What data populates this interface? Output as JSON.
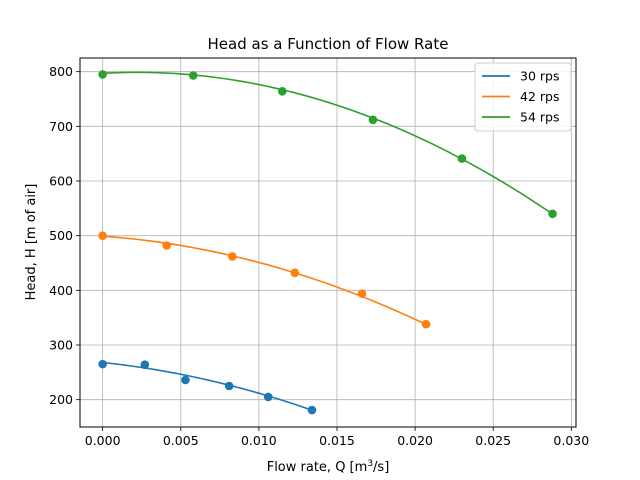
{
  "chart_data": {
    "type": "line",
    "title": "Head as a Function of Flow Rate",
    "xlabel_main": "Flow rate, Q [m",
    "xlabel_sup": "3",
    "xlabel_end": "/s]",
    "ylabel": "Head, H [m of air]",
    "xlim": [
      -0.00145,
      0.0303
    ],
    "ylim": [
      150,
      825
    ],
    "xticks": [
      0.0,
      0.005,
      0.01,
      0.015,
      0.02,
      0.025,
      0.03
    ],
    "xtick_labels": [
      "0.000",
      "0.005",
      "0.010",
      "0.015",
      "0.020",
      "0.025",
      "0.030"
    ],
    "yticks": [
      200,
      300,
      400,
      500,
      600,
      700,
      800
    ],
    "ytick_labels": [
      "200",
      "300",
      "400",
      "500",
      "600",
      "700",
      "800"
    ],
    "grid": true,
    "legend_position": "top-right",
    "series": [
      {
        "name": "30 rps",
        "color": "#1f77b4",
        "points_x": [
          0.0,
          0.0027,
          0.0053,
          0.0081,
          0.0106,
          0.0134
        ],
        "points_y": [
          265,
          264,
          236,
          225,
          205,
          181
        ],
        "fit": {
          "a0": 268,
          "a1": -3000,
          "a2": -262000,
          "x_min": 0.0,
          "x_max": 0.0134
        }
      },
      {
        "name": "42 rps",
        "color": "#ff7f0e",
        "points_x": [
          0.0,
          0.0041,
          0.0083,
          0.0123,
          0.0166,
          0.0207
        ],
        "points_y": [
          500,
          482,
          462,
          432,
          394,
          338
        ],
        "fit": {
          "a0": 499,
          "a1": -2000,
          "a2": -280000,
          "x_min": 0.0,
          "x_max": 0.0207
        }
      },
      {
        "name": "54 rps",
        "color": "#2ca02c",
        "points_x": [
          0.0,
          0.0058,
          0.0115,
          0.0173,
          0.023,
          0.0288
        ],
        "points_y": [
          795,
          793,
          764,
          712,
          641,
          540
        ],
        "fit": {
          "a0": 797,
          "a1": 1600,
          "a2": -366000,
          "x_min": 0.0,
          "x_max": 0.0288
        }
      }
    ]
  }
}
